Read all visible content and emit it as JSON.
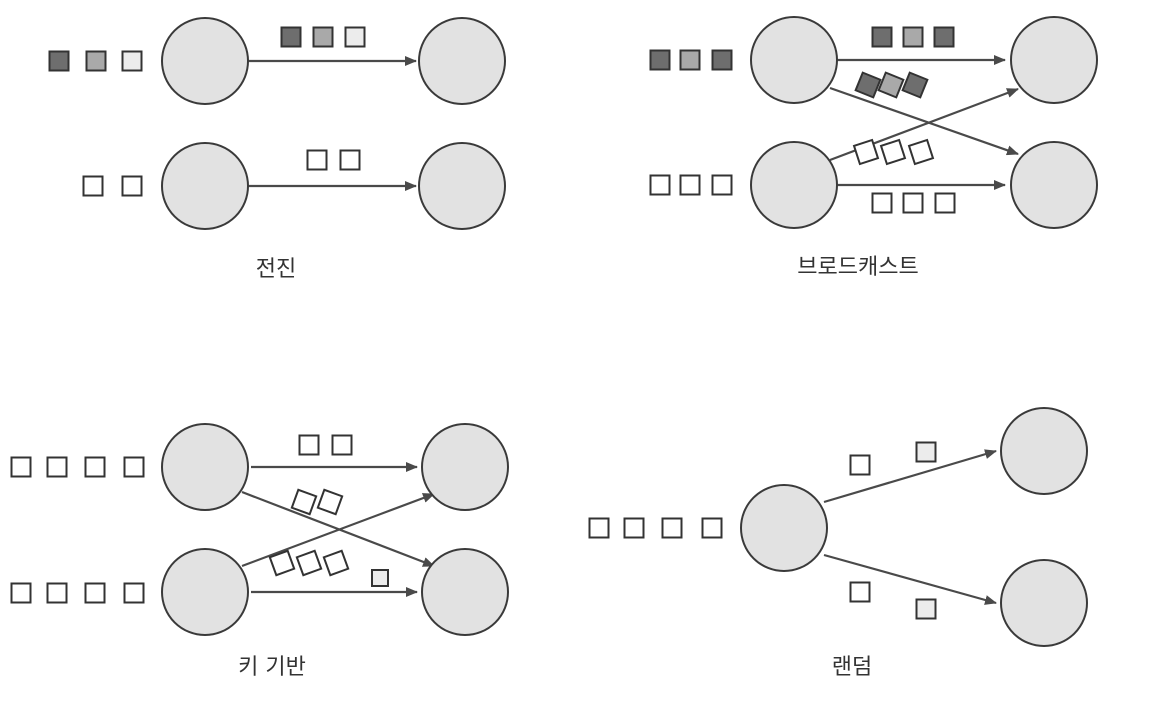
{
  "colors": {
    "node_fill": "#e2e2e2",
    "node_stroke": "#3a3a3a",
    "arrow": "#4a4a4a",
    "dark": "#6e6e6e",
    "mid": "#a9a9a9",
    "light": "#ececec",
    "white": "#ffffff"
  },
  "panels": [
    {
      "id": "forward",
      "caption": "전진"
    },
    {
      "id": "broadcast",
      "caption": "브로드캐스트"
    },
    {
      "id": "key-based",
      "caption": "키 기반"
    },
    {
      "id": "random",
      "caption": "랜덤"
    }
  ]
}
